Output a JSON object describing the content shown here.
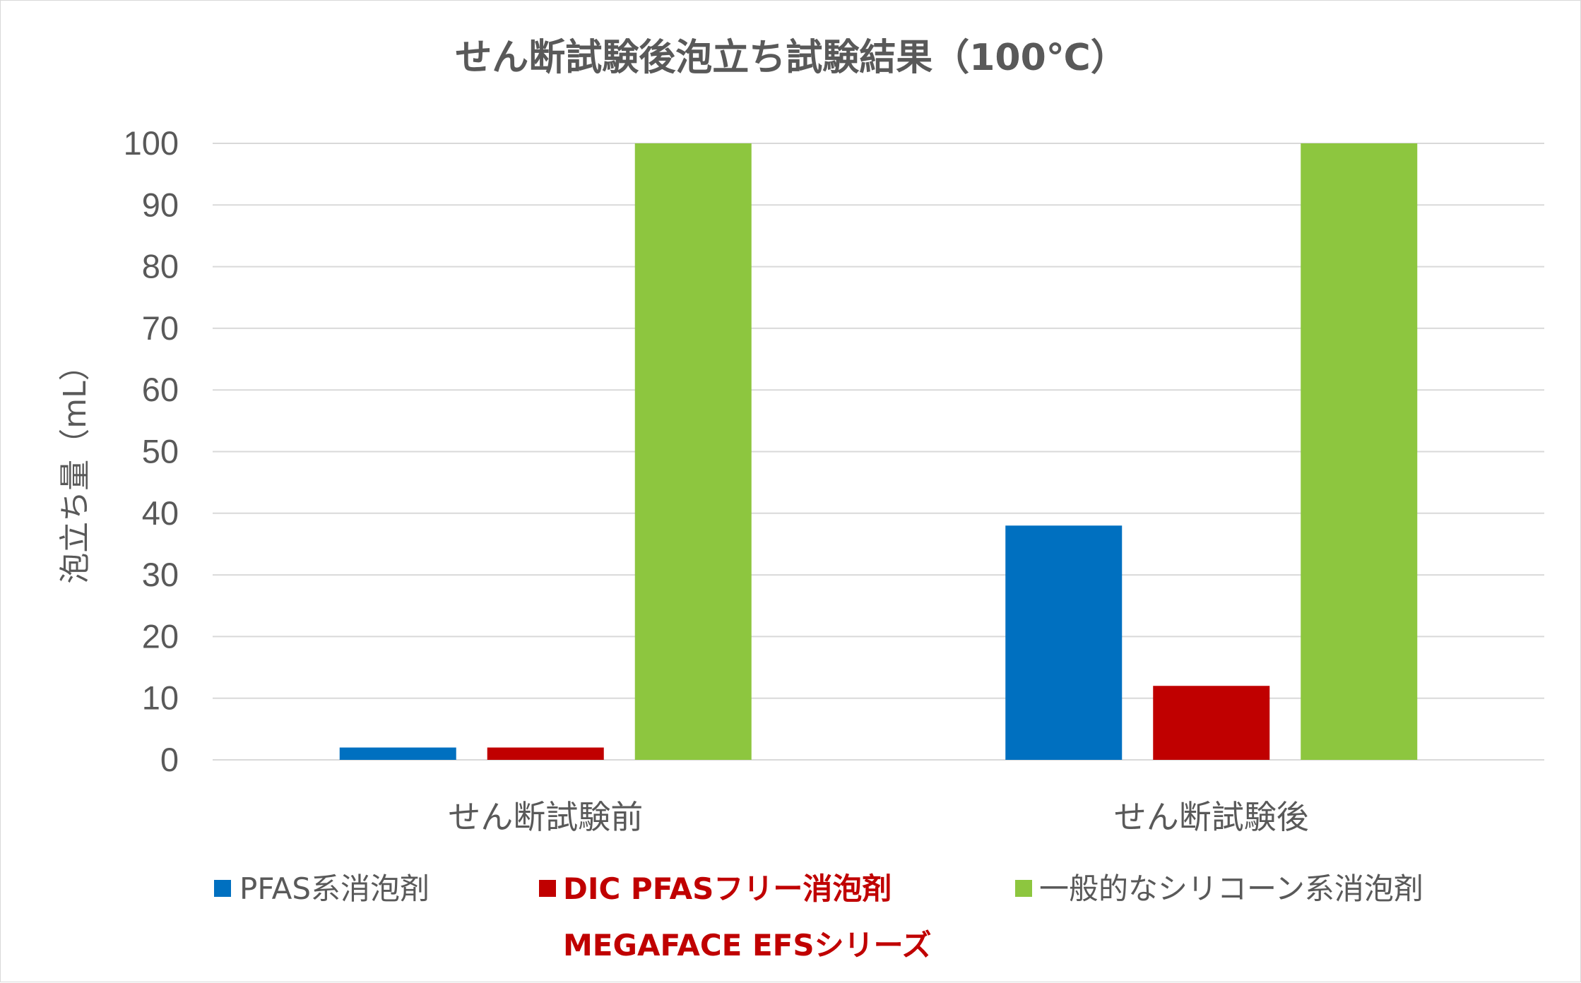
{
  "chart_data": {
    "type": "bar",
    "title": "せん断試験後泡立ち試験結果（100℃）",
    "ylabel": "泡立ち量（mL）",
    "xlabel": "",
    "ylim": [
      0,
      100
    ],
    "yticks": [
      0,
      10,
      20,
      30,
      40,
      50,
      60,
      70,
      80,
      90,
      100
    ],
    "grid": true,
    "legend_position": "bottom",
    "categories": [
      "せん断試験前",
      "せん断試験後"
    ],
    "series": [
      {
        "name": "PFAS系消泡剤",
        "color": "#0070c0",
        "values": [
          2,
          38
        ]
      },
      {
        "name": "DIC PFASフリー消泡剤",
        "name_line2": "MEGAFACE EFSシリーズ",
        "color": "#c00000",
        "values": [
          2,
          12
        ]
      },
      {
        "name": "一般的なシリコーン系消泡剤",
        "color": "#8dc63f",
        "values": [
          100,
          100
        ]
      }
    ]
  }
}
